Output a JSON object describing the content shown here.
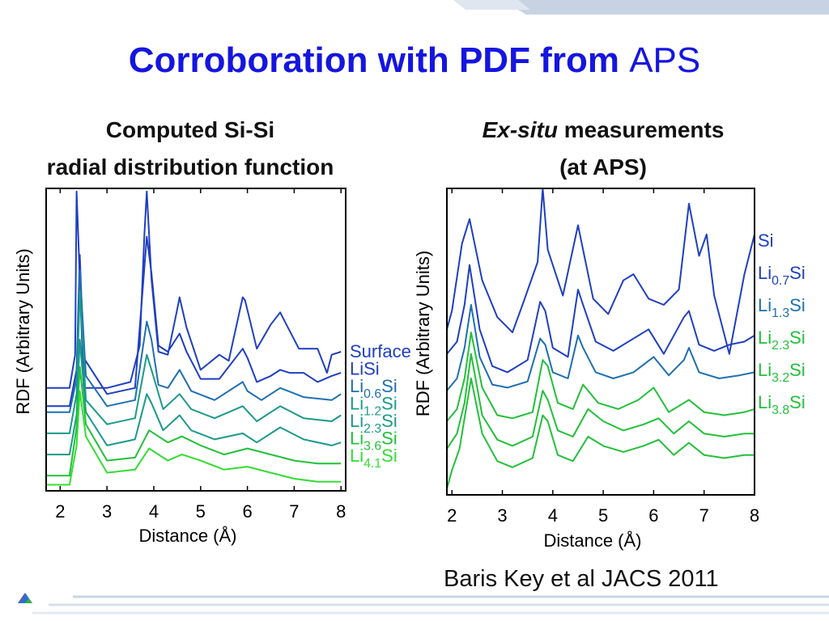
{
  "slide": {
    "title_bold": "Corroboration with PDF from",
    "title_normal": "APS",
    "left_subtitle_line1": "Computed Si-Si",
    "left_subtitle_line2": "radial distribution function",
    "right_subtitle_italic": "Ex-situ",
    "right_subtitle_rest": "measurements",
    "right_subtitle_line2": "(at APS)",
    "citation": "Baris Key et al JACS 2011",
    "colors": {
      "title": "#1515e0",
      "series_dark": "#1f3fc0",
      "series_mid": "#1f6fb0",
      "series_teal": "#1a9a8a",
      "series_green": "#22c03a",
      "series_light": "#33dd33"
    }
  },
  "chart_data": [
    {
      "type": "line",
      "ylabel_main": "RDF",
      "ylabel_paren": "(Arbitrary Units)",
      "xlabel": "Distance (Å)",
      "xlim": [
        1.7,
        8.1
      ],
      "ylim": [
        0,
        10
      ],
      "xticks": [
        2,
        3,
        4,
        5,
        6,
        7,
        8
      ],
      "legend_lines": [
        {
          "parts": [
            {
              "t": "Surface",
              "sub": false
            }
          ],
          "color": "#1f3fc0"
        },
        {
          "parts": [
            {
              "t": "Li",
              "sub": false
            },
            {
              "t": "Si",
              "sub": false
            }
          ],
          "color": "#1f3fc0"
        },
        {
          "parts": [
            {
              "t": "Li",
              "sub": false
            },
            {
              "t": "0.6",
              "sub": true
            },
            {
              "t": "Si",
              "sub": false
            }
          ],
          "color": "#1f6fb0"
        },
        {
          "parts": [
            {
              "t": "Li",
              "sub": false
            },
            {
              "t": "1.2",
              "sub": true
            },
            {
              "t": "Si",
              "sub": false
            }
          ],
          "color": "#1a9a8a"
        },
        {
          "parts": [
            {
              "t": "Li",
              "sub": false
            },
            {
              "t": "2.3",
              "sub": true
            },
            {
              "t": "Si",
              "sub": false
            }
          ],
          "color": "#1a9a8a"
        },
        {
          "parts": [
            {
              "t": "Li",
              "sub": false
            },
            {
              "t": "3.6",
              "sub": true
            },
            {
              "t": "Si",
              "sub": false
            }
          ],
          "color": "#22c03a"
        },
        {
          "parts": [
            {
              "t": "Li",
              "sub": false
            },
            {
              "t": "4.1",
              "sub": true
            },
            {
              "t": "Si",
              "sub": false
            }
          ],
          "color": "#33dd33"
        }
      ],
      "series": [
        {
          "color": "#1f3fc0",
          "x": [
            1.7,
            2.2,
            2.32,
            2.35,
            2.4,
            2.5,
            3.0,
            3.5,
            3.7,
            3.8,
            3.85,
            3.95,
            4.1,
            4.3,
            4.5,
            4.55,
            4.7,
            5.0,
            5.4,
            5.6,
            5.9,
            5.95,
            6.2,
            6.5,
            6.7,
            6.8,
            7.1,
            7.5,
            7.7,
            7.8,
            8.0
          ],
          "y": [
            3.4,
            3.4,
            4.5,
            9.9,
            7.8,
            3.4,
            3.4,
            3.6,
            4.8,
            8.5,
            9.9,
            7.0,
            4.6,
            4.5,
            6.0,
            6.4,
            5.4,
            4.0,
            4.5,
            4.3,
            6.4,
            6.3,
            4.7,
            5.5,
            5.9,
            5.6,
            4.7,
            4.7,
            3.9,
            4.5,
            4.6
          ]
        },
        {
          "color": "#1f3fc0",
          "x": [
            1.7,
            2.2,
            2.35,
            2.42,
            2.5,
            3.0,
            3.6,
            3.85,
            3.95,
            4.1,
            4.3,
            4.55,
            4.7,
            5.0,
            5.4,
            5.9,
            6.0,
            6.2,
            6.5,
            6.7,
            6.9,
            7.2,
            7.5,
            7.8,
            8.0
          ],
          "y": [
            2.8,
            2.8,
            4.0,
            7.8,
            4.4,
            3.2,
            3.4,
            8.4,
            7.2,
            4.8,
            4.6,
            5.2,
            4.6,
            3.7,
            3.7,
            4.7,
            4.4,
            3.6,
            3.8,
            4.0,
            3.9,
            3.9,
            3.6,
            3.8,
            3.9
          ]
        },
        {
          "color": "#1f6fb0",
          "x": [
            1.7,
            2.2,
            2.35,
            2.42,
            2.55,
            3.0,
            3.6,
            3.85,
            3.95,
            4.1,
            4.3,
            4.55,
            4.8,
            5.3,
            5.9,
            6.0,
            6.3,
            6.7,
            7.2,
            7.8,
            8.0
          ],
          "y": [
            2.6,
            2.6,
            3.7,
            7.3,
            3.8,
            2.8,
            3.0,
            5.6,
            5.0,
            3.5,
            3.4,
            4.0,
            3.3,
            3.0,
            3.6,
            3.3,
            3.0,
            3.4,
            3.1,
            3.0,
            3.2
          ]
        },
        {
          "color": "#1a9a8a",
          "x": [
            1.7,
            2.2,
            2.35,
            2.42,
            2.55,
            3.0,
            3.6,
            3.85,
            3.95,
            4.2,
            4.55,
            4.8,
            5.3,
            5.9,
            6.2,
            6.7,
            7.2,
            7.8,
            8.0
          ],
          "y": [
            1.9,
            1.9,
            3.2,
            6.6,
            3.0,
            2.2,
            2.4,
            4.5,
            4.0,
            2.7,
            3.2,
            2.7,
            2.4,
            2.8,
            2.3,
            2.8,
            2.4,
            2.3,
            2.5
          ]
        },
        {
          "color": "#1a9a8a",
          "x": [
            1.7,
            2.2,
            2.35,
            2.42,
            2.55,
            3.0,
            3.6,
            3.85,
            3.95,
            4.2,
            4.55,
            4.8,
            5.3,
            5.9,
            6.2,
            6.7,
            7.2,
            7.8,
            8.0
          ],
          "y": [
            1.2,
            1.2,
            2.5,
            5.0,
            2.6,
            1.5,
            1.7,
            3.2,
            2.9,
            2.0,
            2.5,
            2.0,
            1.7,
            1.9,
            1.6,
            2.1,
            1.7,
            1.5,
            1.6
          ]
        },
        {
          "color": "#22c03a",
          "x": [
            1.7,
            2.2,
            2.35,
            2.42,
            2.55,
            3.0,
            3.6,
            3.9,
            4.3,
            4.6,
            5.0,
            5.5,
            6.0,
            6.5,
            7.0,
            7.5,
            8.0
          ],
          "y": [
            0.5,
            0.5,
            2.1,
            4.1,
            2.2,
            1.0,
            1.1,
            2.0,
            1.6,
            1.8,
            1.5,
            1.2,
            1.4,
            1.2,
            1.0,
            0.9,
            0.9
          ]
        },
        {
          "color": "#33dd33",
          "x": [
            1.7,
            2.2,
            2.35,
            2.42,
            2.55,
            3.0,
            3.6,
            3.9,
            4.3,
            4.6,
            5.0,
            5.5,
            6.0,
            6.5,
            7.0,
            7.5,
            8.0
          ],
          "y": [
            0.2,
            0.2,
            1.5,
            3.3,
            1.8,
            0.6,
            0.7,
            1.4,
            1.0,
            1.2,
            1.0,
            0.7,
            0.8,
            0.6,
            0.4,
            0.3,
            0.3
          ]
        }
      ]
    },
    {
      "type": "line",
      "ylabel_main": "RDF",
      "ylabel_paren": "(Arbitrary Units)",
      "xlabel": "Distance (Å)",
      "xlim": [
        1.9,
        8.0
      ],
      "ylim": [
        0,
        10
      ],
      "xticks": [
        2,
        3,
        4,
        5,
        6,
        7,
        8
      ],
      "legend_lines": [
        {
          "parts": [
            {
              "t": "Si",
              "sub": false
            }
          ],
          "color": "#1f3fc0"
        },
        {
          "parts": [
            {
              "t": "Li",
              "sub": false
            },
            {
              "t": "0.7",
              "sub": true
            },
            {
              "t": "Si",
              "sub": false
            }
          ],
          "color": "#1f3fc0"
        },
        {
          "parts": [
            {
              "t": "Li",
              "sub": false
            },
            {
              "t": "1.3",
              "sub": true
            },
            {
              "t": "Si",
              "sub": false
            }
          ],
          "color": "#1f6fb0"
        },
        {
          "parts": [
            {
              "t": "Li",
              "sub": false
            },
            {
              "t": "2.3",
              "sub": true
            },
            {
              "t": "Si",
              "sub": false
            }
          ],
          "color": "#22c03a"
        },
        {
          "parts": [
            {
              "t": "Li",
              "sub": false
            },
            {
              "t": "3.2",
              "sub": true
            },
            {
              "t": "Si",
              "sub": false
            }
          ],
          "color": "#22c03a"
        },
        {
          "parts": [
            {
              "t": "Li",
              "sub": false
            },
            {
              "t": "3.8",
              "sub": true
            },
            {
              "t": "Si",
              "sub": false
            }
          ],
          "color": "#22c03a"
        }
      ],
      "series": [
        {
          "color": "#1f3fc0",
          "x": [
            1.9,
            2.0,
            2.2,
            2.35,
            2.6,
            2.9,
            3.2,
            3.4,
            3.7,
            3.8,
            3.9,
            4.2,
            4.5,
            4.6,
            4.8,
            5.1,
            5.4,
            5.6,
            5.9,
            6.2,
            6.5,
            6.7,
            6.9,
            7.05,
            7.2,
            7.5,
            7.8,
            8.0
          ],
          "y": [
            5.4,
            6.0,
            8.2,
            9.0,
            7.0,
            5.8,
            5.3,
            6.2,
            7.6,
            10.0,
            8.0,
            6.5,
            8.8,
            8.0,
            6.4,
            5.9,
            7.0,
            7.2,
            6.4,
            6.2,
            6.7,
            9.5,
            7.8,
            8.5,
            6.5,
            4.6,
            7.2,
            8.5
          ]
        },
        {
          "color": "#1f3fc0",
          "x": [
            1.9,
            2.1,
            2.25,
            2.35,
            2.55,
            2.8,
            3.1,
            3.5,
            3.75,
            3.85,
            4.0,
            4.3,
            4.5,
            4.6,
            4.85,
            5.2,
            5.6,
            5.9,
            6.2,
            6.6,
            6.7,
            6.9,
            7.2,
            7.5,
            7.8,
            8.0
          ],
          "y": [
            4.6,
            5.0,
            6.2,
            7.5,
            5.4,
            4.2,
            4.0,
            4.4,
            6.3,
            6.0,
            4.8,
            4.5,
            6.7,
            6.2,
            5.0,
            4.7,
            5.1,
            5.4,
            4.6,
            5.8,
            6.0,
            4.9,
            4.7,
            4.9,
            5.0,
            5.2
          ]
        },
        {
          "color": "#1f6fb0",
          "x": [
            1.9,
            2.1,
            2.25,
            2.38,
            2.55,
            2.8,
            3.1,
            3.5,
            3.75,
            3.85,
            4.0,
            4.3,
            4.5,
            4.6,
            4.85,
            5.2,
            5.6,
            6.0,
            6.3,
            6.6,
            6.7,
            6.9,
            7.3,
            7.7,
            8.0
          ],
          "y": [
            3.4,
            3.8,
            4.8,
            6.2,
            4.5,
            3.6,
            3.5,
            3.7,
            5.1,
            4.9,
            4.0,
            3.8,
            5.2,
            4.8,
            4.0,
            3.8,
            4.0,
            4.5,
            3.9,
            4.4,
            4.8,
            4.0,
            3.8,
            3.9,
            4.0
          ]
        },
        {
          "color": "#22c03a",
          "x": [
            1.9,
            2.1,
            2.25,
            2.38,
            2.6,
            2.9,
            3.2,
            3.6,
            3.8,
            3.9,
            4.1,
            4.4,
            4.6,
            4.9,
            5.3,
            5.7,
            6.0,
            6.3,
            6.7,
            7.0,
            7.4,
            7.8,
            8.0
          ],
          "y": [
            2.4,
            2.8,
            3.8,
            5.3,
            3.5,
            2.6,
            2.5,
            2.7,
            4.4,
            4.2,
            3.0,
            2.8,
            3.6,
            3.0,
            2.8,
            3.1,
            3.5,
            2.7,
            3.1,
            2.7,
            2.6,
            2.7,
            2.8
          ]
        },
        {
          "color": "#22c03a",
          "x": [
            1.9,
            2.1,
            2.25,
            2.38,
            2.6,
            2.9,
            3.2,
            3.6,
            3.8,
            3.9,
            4.1,
            4.4,
            4.7,
            5.0,
            5.4,
            5.8,
            6.1,
            6.4,
            6.7,
            7.0,
            7.4,
            7.8,
            8.0
          ],
          "y": [
            1.5,
            2.0,
            3.0,
            4.6,
            2.6,
            1.8,
            1.6,
            1.9,
            3.4,
            3.1,
            2.1,
            1.9,
            2.8,
            2.4,
            2.1,
            2.3,
            2.5,
            2.0,
            2.4,
            2.0,
            1.9,
            2.0,
            2.0
          ]
        },
        {
          "color": "#22c03a",
          "x": [
            1.9,
            2.0,
            2.15,
            2.3,
            2.38,
            2.6,
            2.9,
            3.2,
            3.6,
            3.8,
            3.9,
            4.1,
            4.4,
            4.7,
            5.0,
            5.4,
            5.8,
            6.1,
            6.4,
            6.7,
            7.0,
            7.4,
            7.8,
            8.0
          ],
          "y": [
            0.2,
            0.8,
            1.5,
            3.0,
            3.8,
            2.0,
            1.1,
            0.9,
            1.2,
            2.6,
            2.4,
            1.3,
            1.1,
            1.9,
            1.6,
            1.4,
            1.6,
            1.8,
            1.3,
            1.7,
            1.3,
            1.2,
            1.3,
            1.3
          ]
        }
      ]
    }
  ]
}
